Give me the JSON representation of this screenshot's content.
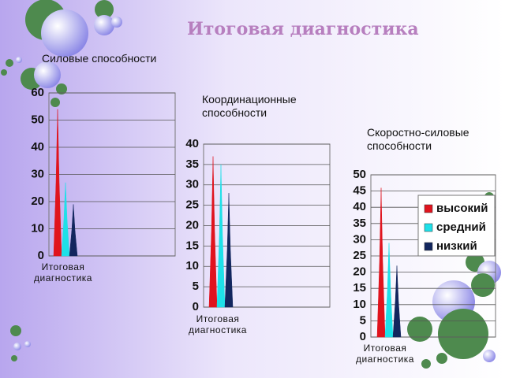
{
  "title": "Итоговая диагностика",
  "chart_data": [
    {
      "type": "bar",
      "title": "Силовые способности",
      "categories": [
        "Итоговая диагностика"
      ],
      "series": [
        {
          "color": "#e0141e",
          "values": [
            54
          ]
        },
        {
          "color": "#1ee0e8",
          "values": [
            27
          ]
        },
        {
          "color": "#12265e",
          "values": [
            19
          ]
        }
      ],
      "ylim": [
        0,
        60
      ],
      "yticks": [
        0,
        10,
        20,
        30,
        40,
        50,
        60
      ],
      "grid": true
    },
    {
      "type": "bar",
      "title": "Координационные способности",
      "categories": [
        "Итоговая диагностика"
      ],
      "series": [
        {
          "color": "#e0141e",
          "values": [
            37
          ]
        },
        {
          "color": "#1ee0e8",
          "values": [
            35
          ]
        },
        {
          "color": "#12265e",
          "values": [
            28
          ]
        }
      ],
      "ylim": [
        0,
        40
      ],
      "yticks": [
        0,
        5,
        10,
        15,
        20,
        25,
        30,
        35,
        40
      ],
      "grid": true
    },
    {
      "type": "bar",
      "title": "Скоростно-силовые способности",
      "categories": [
        "Итоговая диагностика"
      ],
      "series": [
        {
          "name": "высокий",
          "color": "#e0141e",
          "values": [
            46
          ]
        },
        {
          "name": "средний",
          "color": "#1ee0e8",
          "values": [
            29
          ]
        },
        {
          "name": "низкий",
          "color": "#12265e",
          "values": [
            22
          ]
        }
      ],
      "ylim": [
        0,
        50
      ],
      "yticks": [
        0,
        5,
        10,
        15,
        20,
        25,
        30,
        35,
        40,
        45,
        50
      ],
      "grid": true,
      "legend": "right"
    }
  ]
}
